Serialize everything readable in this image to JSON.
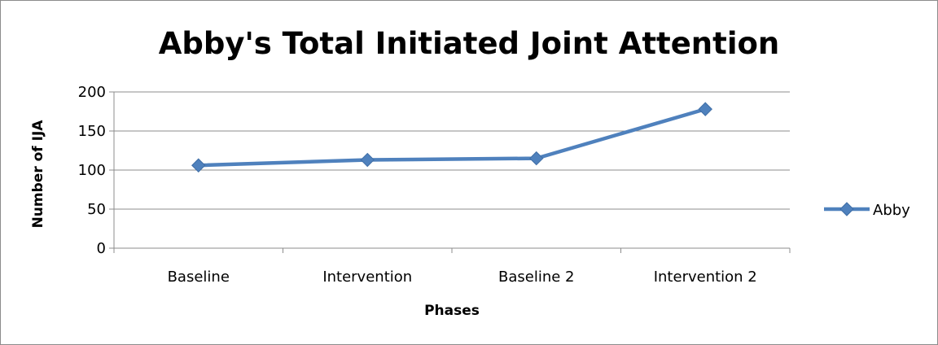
{
  "chart_data": {
    "type": "line",
    "title": "Abby's Total Initiated Joint Attention",
    "xlabel": "Phases",
    "ylabel": "Number of IJA",
    "categories": [
      "Baseline",
      "Intervention",
      "Baseline 2",
      "Intervention 2"
    ],
    "series": [
      {
        "name": "Abby",
        "values": [
          106,
          113,
          115,
          178
        ],
        "color": "#4f81bd",
        "marker": "diamond"
      }
    ],
    "ylim": [
      0,
      200
    ],
    "yticks": [
      0,
      50,
      100,
      150,
      200
    ],
    "grid": "horizontal",
    "legend": "right"
  }
}
